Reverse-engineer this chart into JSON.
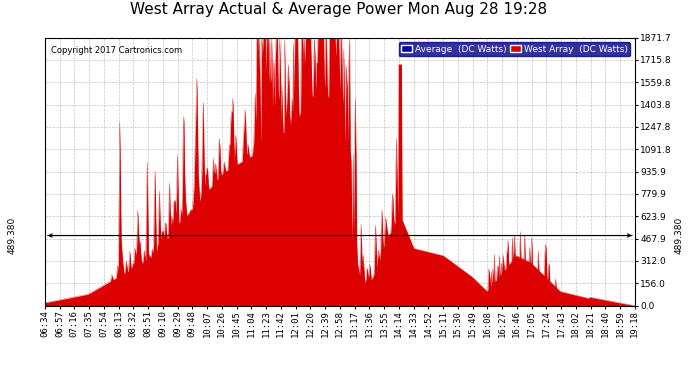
{
  "title": "West Array Actual & Average Power Mon Aug 28 19:28",
  "copyright": "Copyright 2017 Cartronics.com",
  "legend_avg": "Average  (DC Watts)",
  "legend_west": "West Array  (DC Watts)",
  "avg_value": 489.38,
  "ymax": 1871.7,
  "yticks": [
    0.0,
    156.0,
    312.0,
    467.9,
    623.9,
    779.9,
    935.9,
    1091.8,
    1247.8,
    1403.8,
    1559.8,
    1715.8,
    1871.7
  ],
  "avg_label": "489.380",
  "background_color": "#ffffff",
  "fill_color": "#dd0000",
  "avg_line_color": "#0000cc",
  "grid_color": "#aaaaaa",
  "title_fontsize": 11,
  "tick_fontsize": 6.5,
  "x_tick_labels": [
    "06:34",
    "06:57",
    "07:16",
    "07:35",
    "07:54",
    "08:13",
    "08:32",
    "08:51",
    "09:10",
    "09:29",
    "09:48",
    "10:07",
    "10:26",
    "10:45",
    "11:04",
    "11:23",
    "11:42",
    "12:01",
    "12:20",
    "12:39",
    "12:58",
    "13:17",
    "13:36",
    "13:55",
    "14:14",
    "14:33",
    "14:52",
    "15:11",
    "15:30",
    "15:49",
    "16:08",
    "16:27",
    "16:46",
    "17:05",
    "17:24",
    "17:43",
    "18:02",
    "18:21",
    "18:40",
    "18:59",
    "19:18"
  ],
  "n_points": 820
}
